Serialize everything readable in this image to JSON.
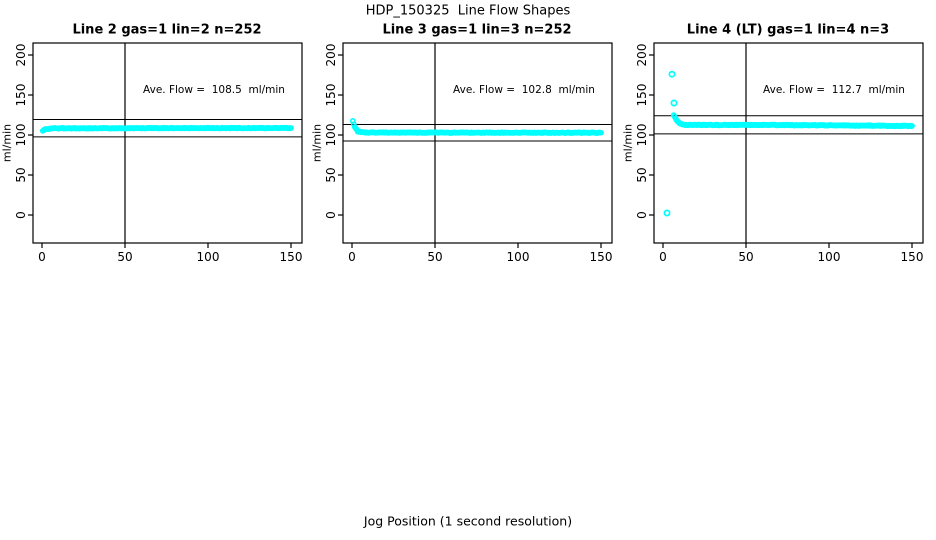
{
  "figure": {
    "title": "HDP_150325  Line Flow Shapes",
    "xlabel": "Jog Position (1 second resolution)"
  },
  "colors": {
    "marker": "#00FFFF",
    "axis": "#000000",
    "background": "#FFFFFF"
  },
  "chart_data": [
    {
      "type": "scatter",
      "title": "Line 2 gas=1 lin=2 n=252",
      "ylabel": "ml/min",
      "n": 252,
      "ave_flow": 108.5,
      "annotation": "Ave. Flow =  108.5  ml/min",
      "xlim": [
        0,
        150
      ],
      "ylim": [
        0,
        200
      ],
      "x_ticks": [
        0,
        50,
        100,
        150
      ],
      "y_ticks": [
        0,
        50,
        100,
        150,
        200
      ],
      "h_ref_lines": [
        119.4,
        97.7
      ],
      "v_ref_line": 50,
      "grid": false,
      "legend": false,
      "band": {
        "x_start": 0.5,
        "x_end": 150,
        "jitter": 0.8,
        "trend": [
          [
            0.5,
            105.5
          ],
          [
            2,
            107.2
          ],
          [
            5,
            108.3
          ],
          [
            80,
            108.6
          ],
          [
            150,
            108.7
          ]
        ]
      },
      "outliers": []
    },
    {
      "type": "scatter",
      "title": "Line 3 gas=1 lin=3 n=252",
      "ylabel": "ml/min",
      "n": 252,
      "ave_flow": 102.8,
      "annotation": "Ave. Flow =  102.8  ml/min",
      "xlim": [
        0,
        150
      ],
      "ylim": [
        0,
        200
      ],
      "x_ticks": [
        0,
        50,
        100,
        150
      ],
      "y_ticks": [
        0,
        50,
        100,
        150,
        200
      ],
      "h_ref_lines": [
        113.1,
        92.5
      ],
      "v_ref_line": 50,
      "grid": false,
      "legend": false,
      "band": {
        "x_start": 0.5,
        "x_end": 150,
        "jitter": 0.8,
        "trend": [
          [
            0.5,
            118
          ],
          [
            1.5,
            111
          ],
          [
            3.5,
            104.5
          ],
          [
            8,
            103.0
          ],
          [
            80,
            102.9
          ],
          [
            150,
            102.8
          ]
        ]
      },
      "outliers": []
    },
    {
      "type": "scatter",
      "title": "Line 4 (LT) gas=1 lin=4 n=3",
      "ylabel": "ml/min",
      "n": 3,
      "ave_flow": 112.7,
      "annotation": "Ave. Flow =  112.7  ml/min",
      "xlim": [
        0,
        150
      ],
      "ylim": [
        0,
        200
      ],
      "x_ticks": [
        0,
        50,
        100,
        150
      ],
      "y_ticks": [
        0,
        50,
        100,
        150,
        200
      ],
      "h_ref_lines": [
        124.0,
        101.4
      ],
      "v_ref_line": 50,
      "grid": false,
      "legend": false,
      "band": {
        "x_start": 6.5,
        "x_end": 150,
        "jitter": 0.9,
        "trend": [
          [
            6.5,
            125
          ],
          [
            8,
            119
          ],
          [
            10,
            114.5
          ],
          [
            13,
            112.6
          ],
          [
            70,
            112.5
          ],
          [
            150,
            111.3
          ]
        ]
      },
      "outliers": [
        [
          5.4,
          176
        ],
        [
          6.6,
          140
        ],
        [
          2.4,
          2.5
        ]
      ]
    }
  ]
}
